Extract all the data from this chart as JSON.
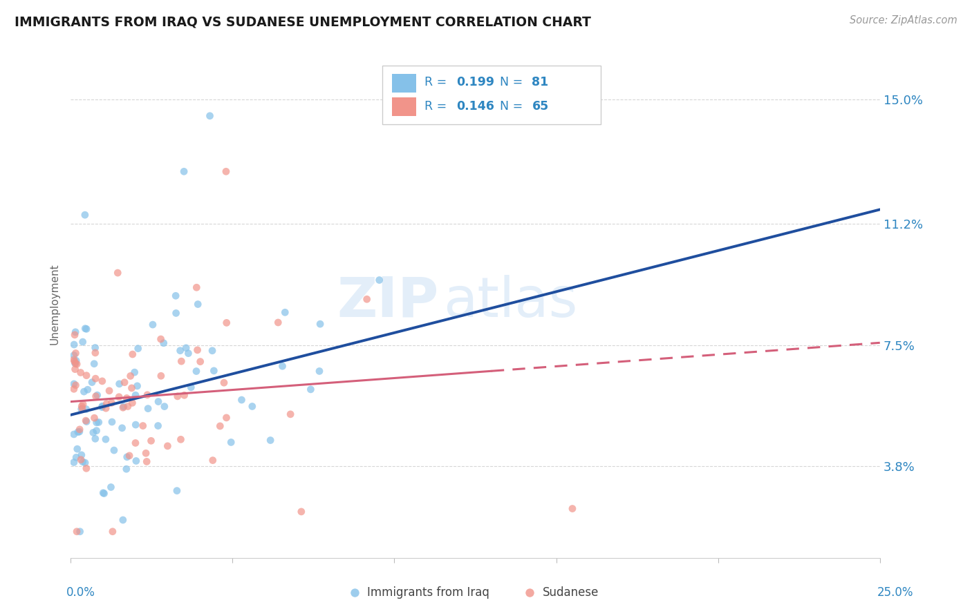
{
  "title": "IMMIGRANTS FROM IRAQ VS SUDANESE UNEMPLOYMENT CORRELATION CHART",
  "source": "Source: ZipAtlas.com",
  "ylabel": "Unemployment",
  "ytick_labels": [
    "3.8%",
    "7.5%",
    "11.2%",
    "15.0%"
  ],
  "ytick_values": [
    0.038,
    0.075,
    0.112,
    0.15
  ],
  "xmin": 0.0,
  "xmax": 0.25,
  "ymin": 0.01,
  "ymax": 0.165,
  "legend_iraq_r": "0.199",
  "legend_iraq_n": "81",
  "legend_sudanese_r": "0.146",
  "legend_sudanese_n": "65",
  "color_iraq": "#85c1e9",
  "color_sudanese": "#f1948a",
  "color_trendline_iraq": "#1f4e9e",
  "color_trendline_sudanese": "#d45f7a",
  "color_axis_labels": "#2e86c1",
  "color_title": "#1a1a1a",
  "watermark_zip": "ZIP",
  "watermark_atlas": "atlas",
  "trendline_solid_end": 0.13,
  "trendline_dash_start": 0.13,
  "trendline_dash_end": 0.25
}
